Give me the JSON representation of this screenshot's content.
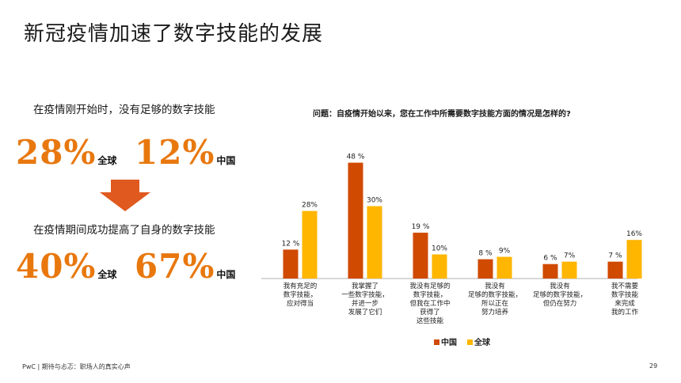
{
  "title": "新冠疫情加速了数字技能的发展",
  "left": {
    "heading1": "在疫情刚开始时，没有足够的数字技能",
    "heading2": "在疫情期间成功提高了自身的数字技能",
    "stats": [
      {
        "value": "28%",
        "label": "全球"
      },
      {
        "value": "12%",
        "label": "中国"
      },
      {
        "value": "40%",
        "label": "全球"
      },
      {
        "value": "67%",
        "label": "中国"
      }
    ]
  },
  "question": "问题：自疫情开始以来，您在工作中所需要数字技能方面的情况是怎样的?",
  "footer": "PwC | 期待与忐忑：职场人的真实心声",
  "page_number": "29",
  "colors": {
    "china": "#d04a02",
    "global": "#ffb600",
    "accent": "#e8780e",
    "arrow": "#e0591e"
  },
  "chart_data": {
    "type": "bar",
    "categories": [
      [
        "我有充足的",
        "数字技能，",
        "应对得当"
      ],
      [
        "我掌握了",
        "一些数字技能，",
        "并进一步",
        "发展了它们"
      ],
      [
        "我没有足够的",
        "数字技能，",
        "但我在工作中",
        "获得了",
        "这些技能"
      ],
      [
        "我没有",
        "足够的数字技能，",
        "所以正在",
        "努力培养"
      ],
      [
        "我没有",
        "足够的数字技能，",
        "但仍在努力"
      ],
      [
        "我不需要",
        "数字技能",
        "来完成",
        "我的工作"
      ]
    ],
    "series": [
      {
        "name": "中国",
        "values": [
          12,
          48,
          19,
          8,
          6,
          7
        ],
        "labels": [
          "12 %",
          "48 %",
          "19 %",
          "8 %",
          "6 %",
          "7 %"
        ]
      },
      {
        "name": "全球",
        "values": [
          28,
          30,
          10,
          9,
          7,
          16
        ],
        "labels": [
          "28%",
          "30%",
          "10%",
          "9%",
          "7%",
          "16%"
        ]
      }
    ],
    "legend_position": "bottom",
    "grid": false
  }
}
